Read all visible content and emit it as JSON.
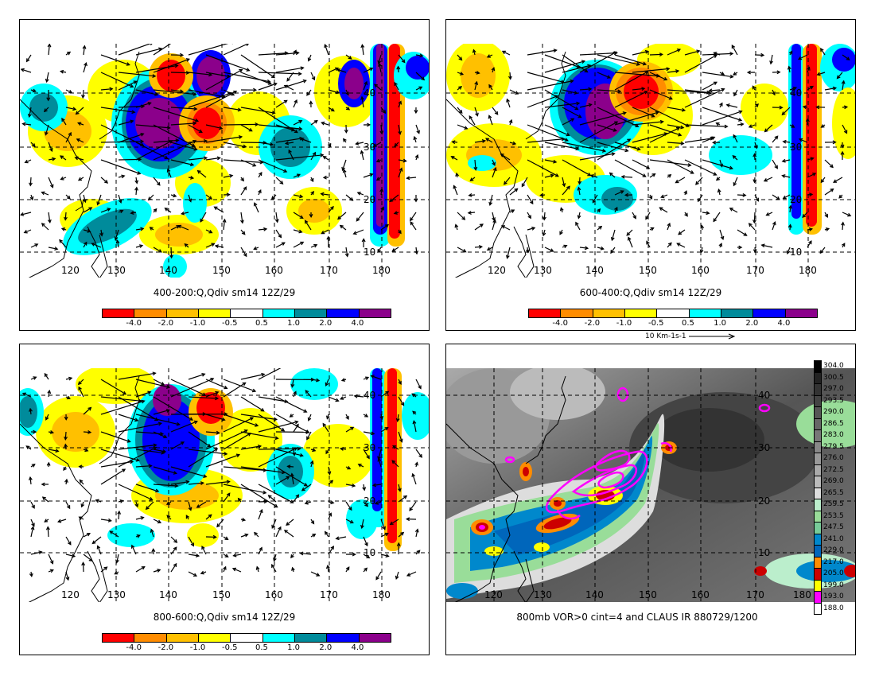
{
  "panels": [
    {
      "title": "400-200:Q,Qdiv sm14 12Z/29",
      "lon_labels": [
        "120",
        "130",
        "140",
        "150",
        "160",
        "170",
        "180"
      ],
      "lat_labels": [
        "40",
        "30",
        "20",
        "10"
      ]
    },
    {
      "title": "600-400:Q,Qdiv sm14 12Z/29",
      "lon_labels": [
        "120",
        "130",
        "140",
        "150",
        "160",
        "170",
        "180"
      ],
      "lat_labels": [
        "40",
        "30",
        "20",
        "10"
      ]
    },
    {
      "title": "800-600:Q,Qdiv sm14 12Z/29",
      "lon_labels": [
        "120",
        "130",
        "140",
        "150",
        "160",
        "170",
        "180"
      ],
      "lat_labels": [
        "40",
        "30",
        "20",
        "10"
      ]
    },
    {
      "title": "800mb VOR>0 cint=4 and CLAUS IR 880729/1200",
      "lon_labels": [
        "120",
        "130",
        "140",
        "150",
        "160",
        "170",
        "180"
      ],
      "lat_labels": [
        "40",
        "30",
        "20",
        "10"
      ]
    }
  ],
  "divergence_colorbar": {
    "labels": [
      "-4.0",
      "-2.0",
      "-1.0",
      "-0.5",
      "0.5",
      "1.0",
      "2.0",
      "4.0"
    ],
    "colors": [
      "#ff0000",
      "#ff8c00",
      "#ffc000",
      "#ffff00",
      "#ffffff",
      "#00ffff",
      "#008b9b",
      "#0000ff",
      "#8b008b"
    ]
  },
  "vector_reference": {
    "label": "10 Km-1s-1"
  },
  "ir_colorbar": {
    "labels": [
      "304.0",
      "300.5",
      "297.0",
      "293.5",
      "290.0",
      "286.5",
      "283.0",
      "279.5",
      "276.0",
      "272.5",
      "269.0",
      "265.5",
      "259.5",
      "253.5",
      "247.5",
      "241.0",
      "229.0",
      "217.0",
      "205.0",
      "199.0",
      "193.0",
      "188.0"
    ],
    "colors": [
      "#000000",
      "#222222",
      "#333333",
      "#444444",
      "#555555",
      "#666666",
      "#777777",
      "#888888",
      "#999999",
      "#aaaaaa",
      "#bbbbbb",
      "#dddddd",
      "#bbeecc",
      "#99dd99",
      "#77cc99",
      "#0088cc",
      "#0066bb",
      "#ff8c00",
      "#cc0000",
      "#ffff00",
      "#ff00ff",
      "#ffffff"
    ]
  },
  "colors": {
    "vorticity_contour": "#ff00ff",
    "coastline": "#000000",
    "grid": "#000000"
  }
}
